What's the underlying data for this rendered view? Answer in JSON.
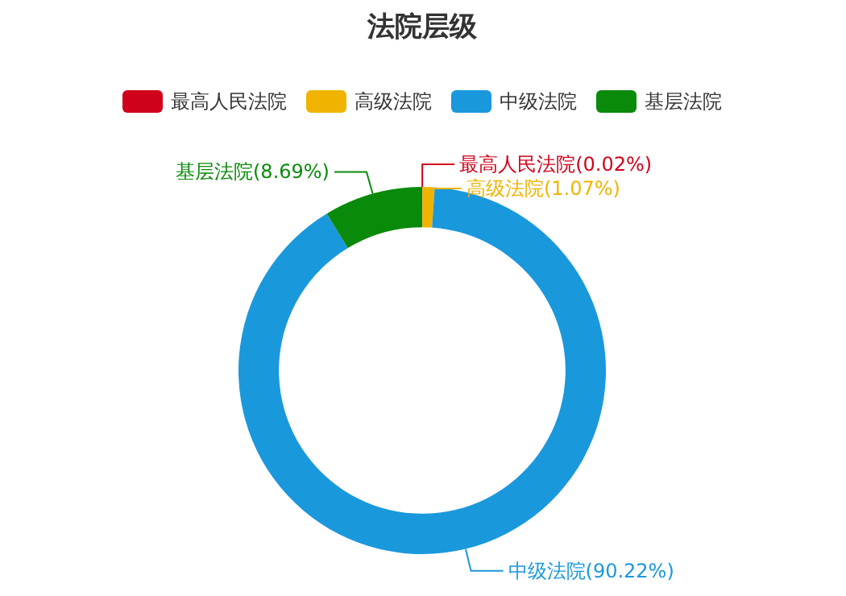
{
  "chart_data": {
    "type": "donut",
    "title": "法院层级",
    "categories": [
      "最高人民法院",
      "高级法院",
      "中级法院",
      "基层法院"
    ],
    "values": [
      0.02,
      1.07,
      90.22,
      8.69
    ],
    "value_labels": [
      "(0.02%)",
      "(1.07%)",
      "(90.22%)",
      "(8.69%)"
    ],
    "colors": [
      "#d0021b",
      "#f0b400",
      "#1a98dc",
      "#0a8a0a"
    ],
    "legend": "top"
  }
}
